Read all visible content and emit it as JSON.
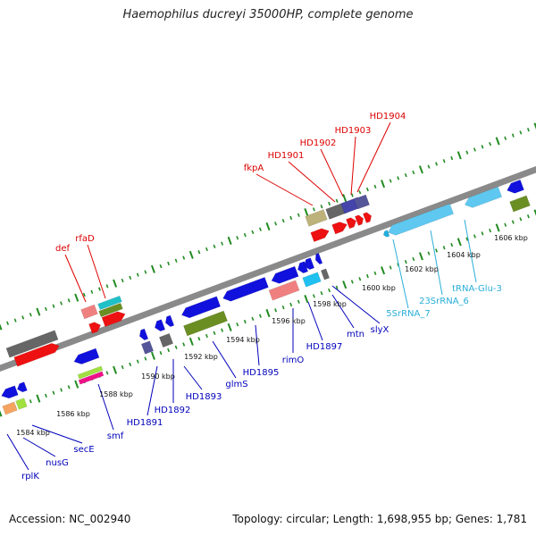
{
  "title": "Haemophilus ducreyi 35000HP, complete genome",
  "footer": {
    "accession": "Accession: NC_002940",
    "summary": "Topology: circular; Length: 1,698,955 bp; Genes: 1,781"
  },
  "colors": {
    "label_forward": "#dd0000",
    "label_reverse": "#0000bb",
    "label_rna": "#2aaed8",
    "backbone": "#888888",
    "tick": "#228b22"
  },
  "scale_labels": [
    "1584 kbp",
    "1586 kbp",
    "1588 kbp",
    "1590 kbp",
    "1592 kbp",
    "1594 kbp",
    "1596 kbp",
    "1598 kbp",
    "1600 kbp",
    "1602 kbp",
    "1604 kbp",
    "1606 kbp"
  ],
  "forward_labels": [
    "def",
    "rfaD",
    "fkpA",
    "HD1901",
    "HD1902",
    "HD1903",
    "HD1904"
  ],
  "reverse_labels": [
    "rplK",
    "nusG",
    "secE",
    "smf",
    "HD1891",
    "HD1892",
    "HD1893",
    "glmS",
    "HD1895",
    "rimO",
    "HD1897",
    "mtn",
    "slyX"
  ],
  "rna_labels": [
    "5SrRNA_7",
    "23SrRNA_6",
    "tRNA-Glu-3"
  ]
}
